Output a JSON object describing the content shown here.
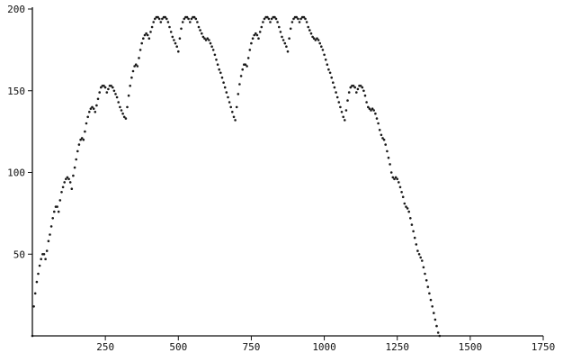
{
  "chart_data": {
    "type": "scatter",
    "title": "",
    "xlabel": "",
    "ylabel": "",
    "xlim": [
      0,
      1750
    ],
    "ylim": [
      0,
      200
    ],
    "grid": false,
    "legend": "none",
    "marker_color": "#1a1a1a",
    "x_ticks": [
      {
        "value": 250,
        "label": "250"
      },
      {
        "value": 500,
        "label": "500"
      },
      {
        "value": 750,
        "label": "750"
      },
      {
        "value": 1000,
        "label": "1000"
      },
      {
        "value": 1250,
        "label": "1250"
      },
      {
        "value": 1500,
        "label": "1500"
      },
      {
        "value": 1750,
        "label": "1750"
      }
    ],
    "y_ticks": [
      {
        "value": 50,
        "label": "50"
      },
      {
        "value": 100,
        "label": "100"
      },
      {
        "value": 150,
        "label": "150"
      },
      {
        "value": 200,
        "label": "200"
      }
    ],
    "series": [
      {
        "points": [
          [
            0,
            0
          ],
          [
            5,
            18
          ],
          [
            10,
            26
          ],
          [
            15,
            33
          ],
          [
            20,
            38
          ],
          [
            25,
            43
          ],
          [
            30,
            47
          ],
          [
            35,
            50
          ],
          [
            40,
            50
          ],
          [
            45,
            47
          ],
          [
            50,
            52
          ],
          [
            55,
            58
          ],
          [
            60,
            62
          ],
          [
            65,
            67
          ],
          [
            70,
            72
          ],
          [
            75,
            76
          ],
          [
            80,
            79
          ],
          [
            85,
            79
          ],
          [
            90,
            76
          ],
          [
            95,
            83
          ],
          [
            100,
            88
          ],
          [
            105,
            91
          ],
          [
            110,
            94
          ],
          [
            115,
            96
          ],
          [
            120,
            97
          ],
          [
            125,
            96
          ],
          [
            130,
            94
          ],
          [
            135,
            90
          ],
          [
            140,
            98
          ],
          [
            145,
            103
          ],
          [
            150,
            108
          ],
          [
            155,
            113
          ],
          [
            160,
            117
          ],
          [
            165,
            120
          ],
          [
            170,
            121
          ],
          [
            175,
            120
          ],
          [
            180,
            125
          ],
          [
            185,
            130
          ],
          [
            190,
            134
          ],
          [
            195,
            137
          ],
          [
            200,
            139
          ],
          [
            205,
            140
          ],
          [
            210,
            139
          ],
          [
            215,
            137
          ],
          [
            220,
            141
          ],
          [
            225,
            145
          ],
          [
            230,
            149
          ],
          [
            235,
            152
          ],
          [
            240,
            153
          ],
          [
            245,
            153
          ],
          [
            250,
            152
          ],
          [
            255,
            149
          ],
          [
            260,
            151
          ],
          [
            265,
            153
          ],
          [
            270,
            153
          ],
          [
            275,
            152
          ],
          [
            280,
            150
          ],
          [
            285,
            148
          ],
          [
            290,
            146
          ],
          [
            295,
            143
          ],
          [
            300,
            140
          ],
          [
            305,
            138
          ],
          [
            310,
            136
          ],
          [
            315,
            134
          ],
          [
            320,
            133
          ],
          [
            325,
            140
          ],
          [
            330,
            147
          ],
          [
            335,
            153
          ],
          [
            340,
            158
          ],
          [
            345,
            162
          ],
          [
            350,
            165
          ],
          [
            355,
            166
          ],
          [
            360,
            165
          ],
          [
            365,
            170
          ],
          [
            370,
            175
          ],
          [
            375,
            179
          ],
          [
            380,
            182
          ],
          [
            385,
            184
          ],
          [
            390,
            185
          ],
          [
            395,
            184
          ],
          [
            400,
            182
          ],
          [
            405,
            186
          ],
          [
            410,
            189
          ],
          [
            415,
            192
          ],
          [
            420,
            194
          ],
          [
            425,
            195
          ],
          [
            430,
            195
          ],
          [
            435,
            194
          ],
          [
            440,
            192
          ],
          [
            445,
            194
          ],
          [
            450,
            195
          ],
          [
            455,
            195
          ],
          [
            460,
            194
          ],
          [
            465,
            192
          ],
          [
            470,
            189
          ],
          [
            475,
            186
          ],
          [
            480,
            183
          ],
          [
            485,
            181
          ],
          [
            490,
            179
          ],
          [
            495,
            177
          ],
          [
            500,
            174
          ],
          [
            505,
            182
          ],
          [
            510,
            188
          ],
          [
            515,
            192
          ],
          [
            520,
            194
          ],
          [
            525,
            195
          ],
          [
            530,
            195
          ],
          [
            535,
            194
          ],
          [
            540,
            192
          ],
          [
            545,
            194
          ],
          [
            550,
            195
          ],
          [
            555,
            195
          ],
          [
            560,
            194
          ],
          [
            565,
            192
          ],
          [
            570,
            189
          ],
          [
            575,
            187
          ],
          [
            580,
            185
          ],
          [
            585,
            183
          ],
          [
            590,
            182
          ],
          [
            595,
            181
          ],
          [
            600,
            182
          ],
          [
            605,
            181
          ],
          [
            610,
            179
          ],
          [
            615,
            177
          ],
          [
            620,
            175
          ],
          [
            625,
            172
          ],
          [
            630,
            169
          ],
          [
            635,
            166
          ],
          [
            640,
            163
          ],
          [
            645,
            161
          ],
          [
            650,
            158
          ],
          [
            655,
            155
          ],
          [
            660,
            152
          ],
          [
            665,
            149
          ],
          [
            670,
            146
          ],
          [
            675,
            143
          ],
          [
            680,
            140
          ],
          [
            685,
            137
          ],
          [
            690,
            134
          ],
          [
            695,
            132
          ],
          [
            700,
            140
          ],
          [
            705,
            148
          ],
          [
            710,
            154
          ],
          [
            715,
            159
          ],
          [
            720,
            163
          ],
          [
            725,
            166
          ],
          [
            730,
            166
          ],
          [
            735,
            165
          ],
          [
            740,
            170
          ],
          [
            745,
            175
          ],
          [
            750,
            179
          ],
          [
            755,
            182
          ],
          [
            760,
            184
          ],
          [
            765,
            185
          ],
          [
            770,
            184
          ],
          [
            775,
            182
          ],
          [
            780,
            186
          ],
          [
            785,
            189
          ],
          [
            790,
            192
          ],
          [
            795,
            194
          ],
          [
            800,
            195
          ],
          [
            805,
            195
          ],
          [
            810,
            194
          ],
          [
            815,
            192
          ],
          [
            820,
            194
          ],
          [
            825,
            195
          ],
          [
            830,
            195
          ],
          [
            835,
            194
          ],
          [
            840,
            192
          ],
          [
            845,
            189
          ],
          [
            850,
            186
          ],
          [
            855,
            183
          ],
          [
            860,
            181
          ],
          [
            865,
            179
          ],
          [
            870,
            177
          ],
          [
            875,
            174
          ],
          [
            880,
            182
          ],
          [
            885,
            188
          ],
          [
            890,
            192
          ],
          [
            895,
            194
          ],
          [
            900,
            195
          ],
          [
            905,
            195
          ],
          [
            910,
            194
          ],
          [
            915,
            192
          ],
          [
            920,
            194
          ],
          [
            925,
            195
          ],
          [
            930,
            195
          ],
          [
            935,
            194
          ],
          [
            940,
            192
          ],
          [
            945,
            189
          ],
          [
            950,
            187
          ],
          [
            955,
            185
          ],
          [
            960,
            183
          ],
          [
            965,
            182
          ],
          [
            970,
            181
          ],
          [
            975,
            182
          ],
          [
            980,
            181
          ],
          [
            985,
            179
          ],
          [
            990,
            177
          ],
          [
            995,
            175
          ],
          [
            1000,
            172
          ],
          [
            1005,
            169
          ],
          [
            1010,
            166
          ],
          [
            1015,
            163
          ],
          [
            1020,
            161
          ],
          [
            1025,
            158
          ],
          [
            1030,
            155
          ],
          [
            1035,
            152
          ],
          [
            1040,
            149
          ],
          [
            1045,
            146
          ],
          [
            1050,
            143
          ],
          [
            1055,
            140
          ],
          [
            1060,
            137
          ],
          [
            1065,
            134
          ],
          [
            1070,
            132
          ],
          [
            1075,
            138
          ],
          [
            1080,
            144
          ],
          [
            1085,
            149
          ],
          [
            1090,
            152
          ],
          [
            1095,
            153
          ],
          [
            1100,
            153
          ],
          [
            1105,
            152
          ],
          [
            1110,
            149
          ],
          [
            1115,
            151
          ],
          [
            1120,
            153
          ],
          [
            1125,
            153
          ],
          [
            1130,
            152
          ],
          [
            1135,
            150
          ],
          [
            1140,
            147
          ],
          [
            1145,
            143
          ],
          [
            1150,
            140
          ],
          [
            1155,
            139
          ],
          [
            1160,
            138
          ],
          [
            1165,
            139
          ],
          [
            1170,
            138
          ],
          [
            1175,
            136
          ],
          [
            1180,
            133
          ],
          [
            1185,
            130
          ],
          [
            1190,
            126
          ],
          [
            1195,
            123
          ],
          [
            1200,
            121
          ],
          [
            1205,
            120
          ],
          [
            1210,
            117
          ],
          [
            1215,
            113
          ],
          [
            1220,
            109
          ],
          [
            1225,
            105
          ],
          [
            1230,
            100
          ],
          [
            1235,
            97
          ],
          [
            1240,
            96
          ],
          [
            1245,
            97
          ],
          [
            1250,
            96
          ],
          [
            1255,
            94
          ],
          [
            1260,
            91
          ],
          [
            1265,
            88
          ],
          [
            1270,
            85
          ],
          [
            1275,
            81
          ],
          [
            1280,
            79
          ],
          [
            1285,
            78
          ],
          [
            1290,
            76
          ],
          [
            1295,
            72
          ],
          [
            1300,
            68
          ],
          [
            1305,
            64
          ],
          [
            1310,
            60
          ],
          [
            1315,
            56
          ],
          [
            1320,
            52
          ],
          [
            1325,
            50
          ],
          [
            1330,
            48
          ],
          [
            1335,
            46
          ],
          [
            1340,
            42
          ],
          [
            1345,
            38
          ],
          [
            1350,
            34
          ],
          [
            1355,
            30
          ],
          [
            1360,
            26
          ],
          [
            1365,
            22
          ],
          [
            1370,
            18
          ],
          [
            1375,
            14
          ],
          [
            1380,
            10
          ],
          [
            1385,
            6
          ],
          [
            1390,
            2
          ],
          [
            1395,
            0
          ]
        ]
      }
    ]
  }
}
